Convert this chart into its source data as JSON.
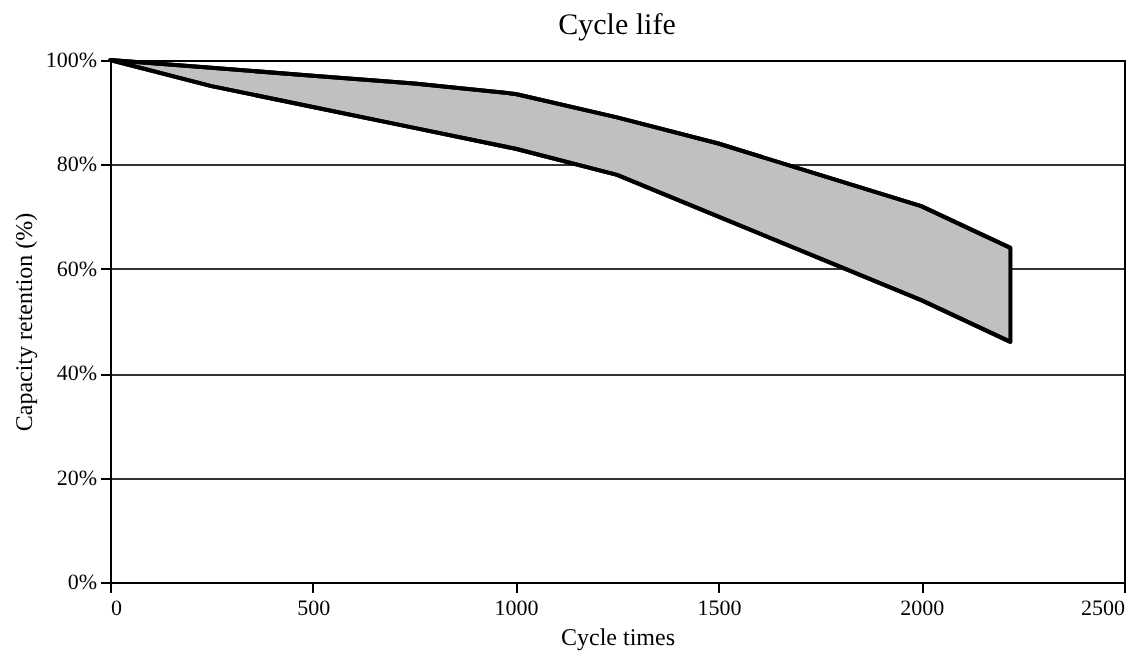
{
  "chart_data": {
    "type": "line",
    "title": "Cycle life",
    "xlabel": "Cycle times",
    "ylabel": "Capacity retention (%)",
    "x": [
      0,
      250,
      500,
      750,
      1000,
      1250,
      1500,
      1750,
      2000,
      2220
    ],
    "series": [
      {
        "color": "#000000",
        "values": [
          100,
          98.5,
          97,
          95.5,
          93.5,
          89,
          84,
          78,
          72,
          64
        ],
        "lower": [
          100,
          95,
          91,
          87,
          83,
          78,
          70,
          62,
          54,
          46
        ],
        "upper": [
          100,
          98.5,
          97,
          95.5,
          93.5,
          89,
          84,
          78,
          72,
          64
        ]
      },
      {
        "color": "#000000",
        "values": [
          100,
          95,
          91,
          87,
          83,
          78,
          70,
          62,
          54,
          46
        ]
      }
    ],
    "xlim": [
      0,
      2500
    ],
    "xticks": [
      0,
      500,
      1000,
      1500,
      2000,
      2500
    ],
    "ylim": [
      0,
      100
    ],
    "yticks": [
      {
        "value": 0,
        "label": "0%"
      },
      {
        "value": 20,
        "label": "20%"
      },
      {
        "value": 40,
        "label": "40%"
      },
      {
        "value": 60,
        "label": "60%"
      },
      {
        "value": 80,
        "label": "80%"
      },
      {
        "value": 100,
        "label": "100%"
      }
    ],
    "grid": "y",
    "line_style": "solid"
  }
}
